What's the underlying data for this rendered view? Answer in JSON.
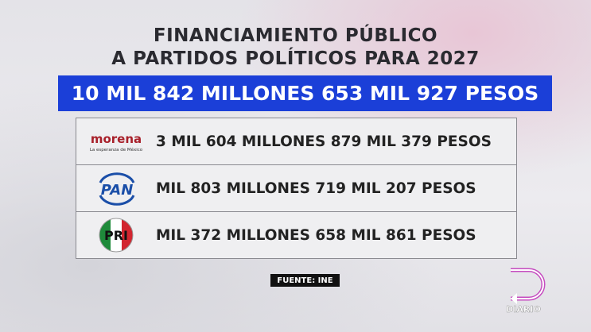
{
  "header": {
    "title": [
      "FINANCIAMIENTO PÚBLICO",
      "A PARTIDOS POLÍTICOS PARA 2027"
    ]
  },
  "total": "10 MIL 842 MILLONES 653 MIL 927 PESOS",
  "rows": [
    {
      "logo": "morena",
      "tagline": "La esperanza de México",
      "amount": "3 MIL 604 MILLONES 879 MIL 379 PESOS"
    },
    {
      "logo": "PAN",
      "amount": "MIL 803 MILLONES 719 MIL 207 PESOS"
    },
    {
      "logo": "PRI",
      "amount": "MIL 372 MILLONES 658 MIL 861 PESOS"
    }
  ],
  "source": "FUENTE: INE",
  "brand": "DIARIO"
}
